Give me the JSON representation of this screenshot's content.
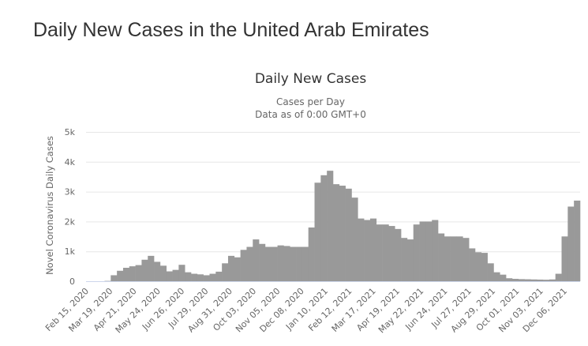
{
  "page_title": "Daily New Cases in the United Arab Emirates",
  "chart_data": {
    "type": "bar",
    "title": "Daily New Cases",
    "subtitle_lines": [
      "Cases per Day",
      "Data as of 0:00 GMT+0"
    ],
    "ylabel": "Novel Coronavirus Daily Cases",
    "xlabel": "",
    "ylim": [
      0,
      5000
    ],
    "yticks": [
      0,
      1000,
      2000,
      3000,
      4000,
      5000
    ],
    "ytick_labels": [
      "0",
      "1k",
      "2k",
      "3k",
      "4k",
      "5k"
    ],
    "xtick_labels": [
      "Feb 15, 2020",
      "Mar 19, 2020",
      "Apr 21, 2020",
      "May 24, 2020",
      "Jun 26, 2020",
      "Jul 29, 2020",
      "Aug 31, 2020",
      "Oct 03, 2020",
      "Nov 05, 2020",
      "Dec 08, 2020",
      "Jan 10, 2021",
      "Feb 12, 2021",
      "Mar 17, 2021",
      "Apr 19, 2021",
      "May 22, 2021",
      "Jun 24, 2021",
      "Jul 27, 2021",
      "Aug 29, 2021",
      "Oct 01, 2021",
      "Nov 03, 2021",
      "Dec 06, 2021"
    ],
    "x_range": [
      "Feb 15, 2020",
      "Dec 26, 2021"
    ],
    "grid": true,
    "bar_color": "#999999",
    "values": [
      0,
      0,
      0,
      10,
      200,
      350,
      450,
      500,
      540,
      720,
      850,
      650,
      520,
      330,
      380,
      550,
      300,
      250,
      230,
      200,
      250,
      320,
      600,
      850,
      800,
      1050,
      1150,
      1400,
      1250,
      1150,
      1150,
      1200,
      1180,
      1150,
      1150,
      1150,
      1800,
      3300,
      3550,
      3700,
      3250,
      3200,
      3100,
      2800,
      2100,
      2050,
      2100,
      1900,
      1900,
      1850,
      1750,
      1450,
      1400,
      1900,
      2000,
      2000,
      2050,
      1600,
      1500,
      1500,
      1500,
      1450,
      1100,
      970,
      950,
      600,
      300,
      220,
      100,
      80,
      70,
      65,
      60,
      55,
      50,
      60,
      250,
      1500,
      2500,
      2700
    ]
  }
}
